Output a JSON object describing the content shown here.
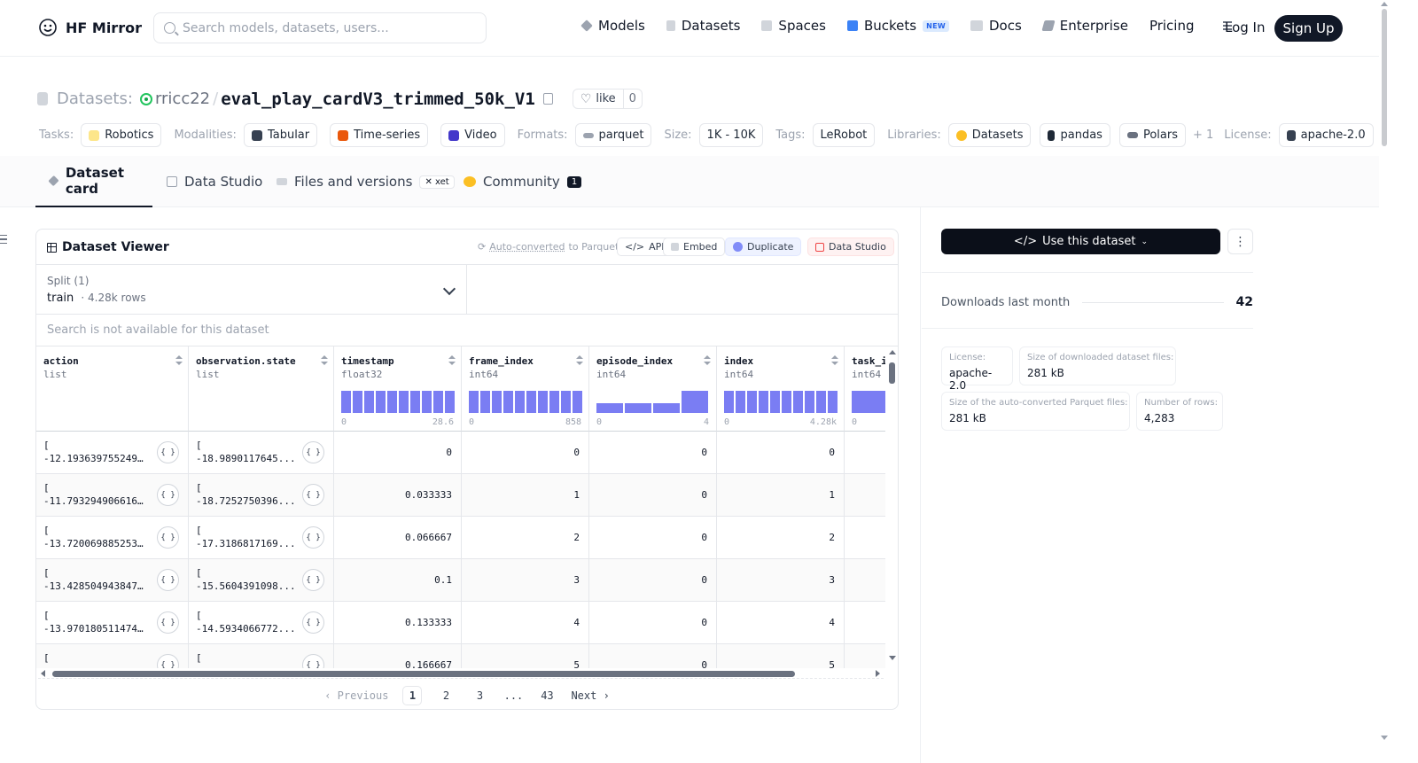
{
  "header": {
    "brand": "HF Mirror",
    "search_placeholder": "Search models, datasets, users...",
    "nav": [
      {
        "label": "Models",
        "icon": "cube-icon",
        "color": "#9ca3af"
      },
      {
        "label": "Datasets",
        "icon": "database-icon",
        "color": "#9ca3af"
      },
      {
        "label": "Spaces",
        "icon": "grid-icon",
        "color": "#9ca3af"
      },
      {
        "label": "Buckets",
        "icon": "bucket-icon",
        "color": "#3b82f6"
      },
      {
        "label": "Docs",
        "icon": "book-icon",
        "color": "#9ca3af"
      },
      {
        "label": "Enterprise",
        "icon": "enterprise-icon",
        "color": "#9ca3af"
      },
      {
        "label": "Pricing"
      }
    ],
    "buckets_badge": "NEW",
    "login": "Log In",
    "signup": "Sign Up"
  },
  "repo": {
    "type_label": "Datasets:",
    "owner": "rricc22",
    "name": "eval_play_cardV3_trimmed_50k_V1",
    "like_label": "like",
    "like_count": "0"
  },
  "tags": {
    "tasks_label": "Tasks:",
    "tasks": [
      "Robotics"
    ],
    "modalities_label": "Modalities:",
    "modalities": [
      "Tabular",
      "Time-series",
      "Video"
    ],
    "formats_label": "Formats:",
    "formats": [
      "parquet"
    ],
    "size_label": "Size:",
    "size": "1K - 10K",
    "tags_label": "Tags:",
    "tags": [
      "LeRobot"
    ],
    "libraries_label": "Libraries:",
    "libraries": [
      "Datasets",
      "pandas",
      "Polars"
    ],
    "libraries_more": "+ 1",
    "license_label": "License:",
    "license": "apache-2.0"
  },
  "tabs": [
    {
      "label": "Dataset card",
      "active": true
    },
    {
      "label": "Data Studio"
    },
    {
      "label": "Files and versions",
      "badge": "xet"
    },
    {
      "label": "Community",
      "badge": "1"
    }
  ],
  "viewer": {
    "title": "Dataset Viewer",
    "autoconv_link": "Auto-converted",
    "autoconv_rest": "to Parquet",
    "buttons": {
      "api": "API",
      "embed": "Embed",
      "duplicate": "Duplicate",
      "data_studio": "Data Studio"
    },
    "split_label": "Split (1)",
    "split_value": "train",
    "split_rows": "4.28k rows",
    "search_na": "Search is not available for this dataset",
    "columns": [
      {
        "name": "action",
        "type": "list"
      },
      {
        "name": "observation.state",
        "type": "list"
      },
      {
        "name": "timestamp",
        "type": "float32",
        "min": "0",
        "max": "28.6",
        "hist": [
          1,
          1,
          1,
          1,
          1,
          1,
          1,
          1,
          1,
          1
        ]
      },
      {
        "name": "frame_index",
        "type": "int64",
        "min": "0",
        "max": "858",
        "hist": [
          1,
          1,
          1,
          1,
          1,
          1,
          1,
          1,
          1,
          1
        ]
      },
      {
        "name": "episode_index",
        "type": "int64",
        "min": "0",
        "max": "4",
        "hist": [
          0.45,
          0.45,
          0.45,
          1
        ]
      },
      {
        "name": "index",
        "type": "int64",
        "min": "0",
        "max": "4.28k",
        "hist": [
          1,
          1,
          1,
          1,
          1,
          1,
          1,
          1,
          1,
          1
        ]
      },
      {
        "name": "task_index",
        "type": "int64",
        "min": "0",
        "max": "",
        "hist": [
          1
        ]
      }
    ],
    "rows": [
      {
        "action": "-12.193639755249...",
        "obs": "-18.9890117645...",
        "timestamp": "0",
        "frame_index": "0",
        "episode_index": "0",
        "index": "0"
      },
      {
        "action": "-11.793294906616...",
        "obs": "-18.7252750396...",
        "timestamp": "0.033333",
        "frame_index": "1",
        "episode_index": "0",
        "index": "1"
      },
      {
        "action": "-13.720069885253...",
        "obs": "-17.3186817169...",
        "timestamp": "0.066667",
        "frame_index": "2",
        "episode_index": "0",
        "index": "2"
      },
      {
        "action": "-13.428504943847...",
        "obs": "-15.5604391098...",
        "timestamp": "0.1",
        "frame_index": "3",
        "episode_index": "0",
        "index": "3"
      },
      {
        "action": "-13.970180511474...",
        "obs": "-14.5934066772...",
        "timestamp": "0.133333",
        "frame_index": "4",
        "episode_index": "0",
        "index": "4"
      },
      {
        "action": "",
        "obs": "",
        "timestamp": "0.166667",
        "frame_index": "5",
        "episode_index": "0",
        "index": "5"
      }
    ],
    "list_open": "[",
    "json_icon": "{ }",
    "pager": {
      "prev": "Previous",
      "pages": [
        "1",
        "2",
        "3",
        "...",
        "43"
      ],
      "next": "Next",
      "current": "1"
    }
  },
  "side": {
    "use_button": "Use this dataset",
    "downloads_label": "Downloads last month",
    "downloads_value": "42",
    "stats": [
      {
        "label": "License:",
        "value": "apache-2.0"
      },
      {
        "label": "Size of downloaded dataset files:",
        "value": "281 kB"
      },
      {
        "label": "Size of the auto-converted Parquet files:",
        "value": "281 kB"
      },
      {
        "label": "Number of rows:",
        "value": "4,283"
      }
    ]
  }
}
